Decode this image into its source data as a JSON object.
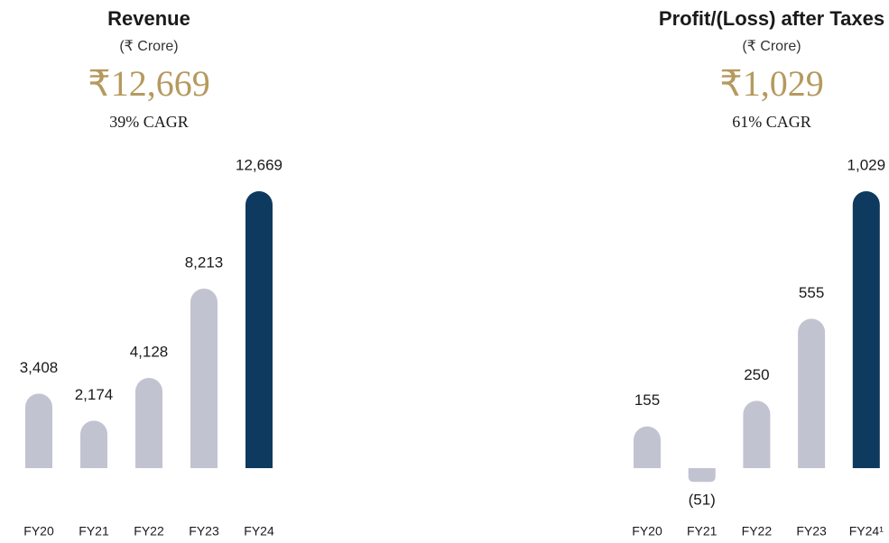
{
  "chart_data": [
    {
      "type": "bar",
      "title": "Revenue",
      "subtitle": "(₹ Crore)",
      "headline": "₹12,669",
      "annotation": "39% CAGR",
      "categories": [
        "FY20",
        "FY21",
        "FY22",
        "FY23",
        "FY24"
      ],
      "values": [
        3408,
        2174,
        4128,
        8213,
        12669
      ],
      "value_labels": [
        "3,408",
        "2,174",
        "4,128",
        "8,213",
        "12,669"
      ],
      "colors": [
        "#c2c3d1",
        "#c2c3d1",
        "#c2c3d1",
        "#c2c3d1",
        "#0e3a5f"
      ]
    },
    {
      "type": "bar",
      "title": "Profit/(Loss) after Taxes",
      "subtitle": "(₹ Crore)",
      "headline": "₹1,029",
      "annotation": "61% CAGR",
      "categories": [
        "FY20",
        "FY21",
        "FY22",
        "FY23",
        "FY24¹"
      ],
      "values": [
        155,
        -51,
        250,
        555,
        1029
      ],
      "value_labels": [
        "155",
        "(51)",
        "250",
        "555",
        "1,029"
      ],
      "colors": [
        "#c2c3d1",
        "#c2c3d1",
        "#c2c3d1",
        "#c2c3d1",
        "#0e3a5f"
      ]
    }
  ]
}
